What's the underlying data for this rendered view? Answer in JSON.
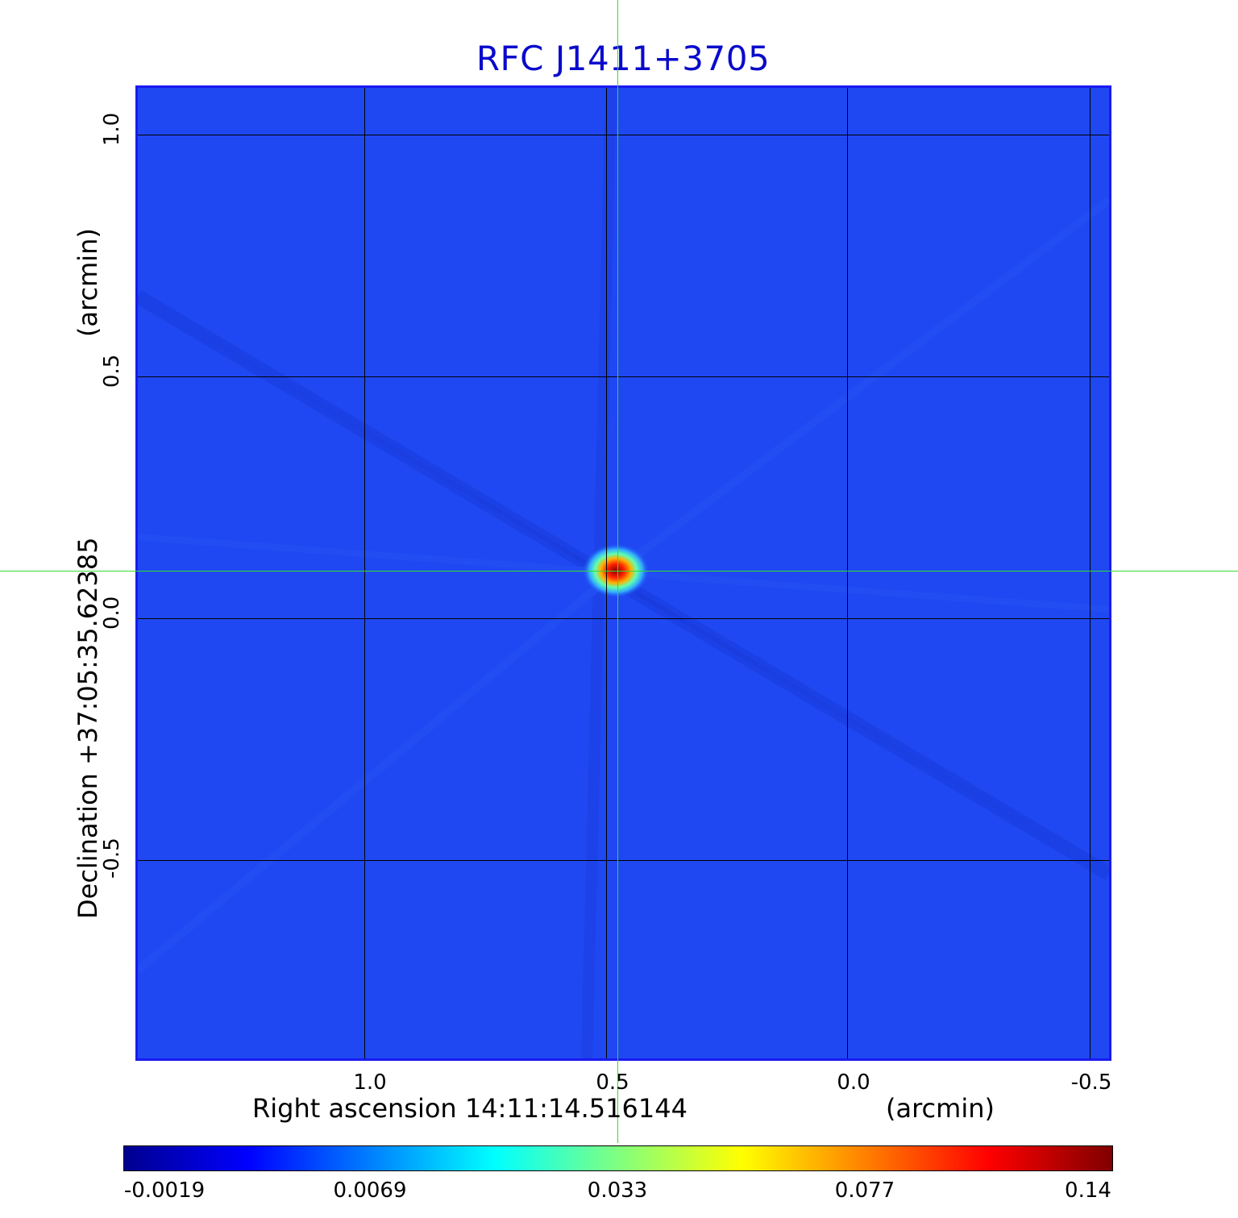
{
  "title": "RFC J1411+3705",
  "x_axis": {
    "label": "Right ascension  14:11:14.516144",
    "unit": "(arcmin)",
    "ticks": [
      "1.0",
      "0.5",
      "0.0",
      "-0.5"
    ]
  },
  "y_axis": {
    "label": "Declination  +37:05:35.62385",
    "unit": "(arcmin)",
    "ticks": [
      "1.0",
      "0.5",
      "0.0",
      "-0.5"
    ]
  },
  "colorbar": {
    "ticks": [
      "-0.0019",
      "0.0069",
      "0.033",
      "0.077",
      "0.14"
    ],
    "colormap": [
      "#00008f",
      "#0000ff",
      "#0080ff",
      "#00ffff",
      "#80ff80",
      "#ffff00",
      "#ff8000",
      "#ff0000",
      "#800000"
    ]
  },
  "colors": {
    "title": "#0a0acc",
    "frame": "#1a1af0",
    "background_field": "#1e46f0",
    "crosshair": "#33dd33"
  }
}
